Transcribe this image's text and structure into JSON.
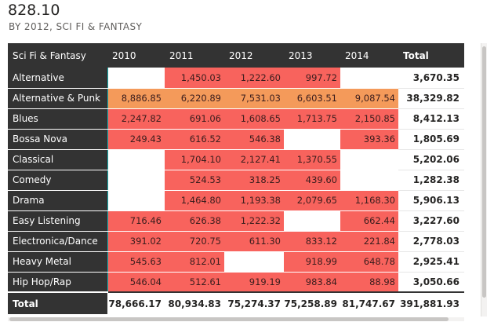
{
  "kpi": {
    "value": "828.10",
    "subtitle": "BY 2012, SCI FI & FANTASY"
  },
  "matrix": {
    "header": {
      "corner": "Sci Fi & Fantasy",
      "years": [
        "2010",
        "2011",
        "2012",
        "2013",
        "2014"
      ],
      "total": "Total"
    },
    "rows": [
      {
        "genre": "Alternative",
        "cells": [
          "",
          "1,450.03",
          "1,222.60",
          "997.72",
          ""
        ],
        "total": "3,670.35"
      },
      {
        "genre": "Alternative & Punk",
        "cells": [
          "8,886.85",
          "6,220.89",
          "7,531.03",
          "6,603.51",
          "9,087.54"
        ],
        "total": "38,329.82"
      },
      {
        "genre": "Blues",
        "cells": [
          "2,247.82",
          "691.06",
          "1,608.65",
          "1,713.75",
          "2,150.85"
        ],
        "total": "8,412.13"
      },
      {
        "genre": "Bossa Nova",
        "cells": [
          "249.43",
          "616.52",
          "546.38",
          "",
          "393.36"
        ],
        "total": "1,805.69"
      },
      {
        "genre": "Classical",
        "cells": [
          "",
          "1,704.10",
          "2,127.41",
          "1,370.55",
          ""
        ],
        "total": "5,202.06"
      },
      {
        "genre": "Comedy",
        "cells": [
          "",
          "524.53",
          "318.25",
          "439.60",
          ""
        ],
        "total": "1,282.38"
      },
      {
        "genre": "Drama",
        "cells": [
          "",
          "1,464.80",
          "1,193.38",
          "2,079.65",
          "1,168.30"
        ],
        "total": "5,906.13"
      },
      {
        "genre": "Easy Listening",
        "cells": [
          "716.46",
          "626.38",
          "1,222.32",
          "",
          "662.44"
        ],
        "total": "3,227.60"
      },
      {
        "genre": "Electronica/Dance",
        "cells": [
          "391.02",
          "720.75",
          "611.30",
          "833.12",
          "221.84"
        ],
        "total": "2,778.03"
      },
      {
        "genre": "Heavy Metal",
        "cells": [
          "545.63",
          "812.01",
          "",
          "918.99",
          "648.78"
        ],
        "total": "2,925.41"
      },
      {
        "genre": "Hip Hop/Rap",
        "cells": [
          "546.04",
          "512.61",
          "919.19",
          "983.84",
          "88.98"
        ],
        "total": "3,050.66"
      }
    ],
    "footer": {
      "label": "Total",
      "cells": [
        "78,666.17",
        "80,934.83",
        "75,274.37",
        "75,258.89",
        "81,747.67"
      ],
      "total": "391,881.93"
    },
    "colors": {
      "header_bg": "#333333",
      "high": "#f49a5a",
      "low": "#f8635d",
      "accent_line": "#19b3b3"
    }
  }
}
